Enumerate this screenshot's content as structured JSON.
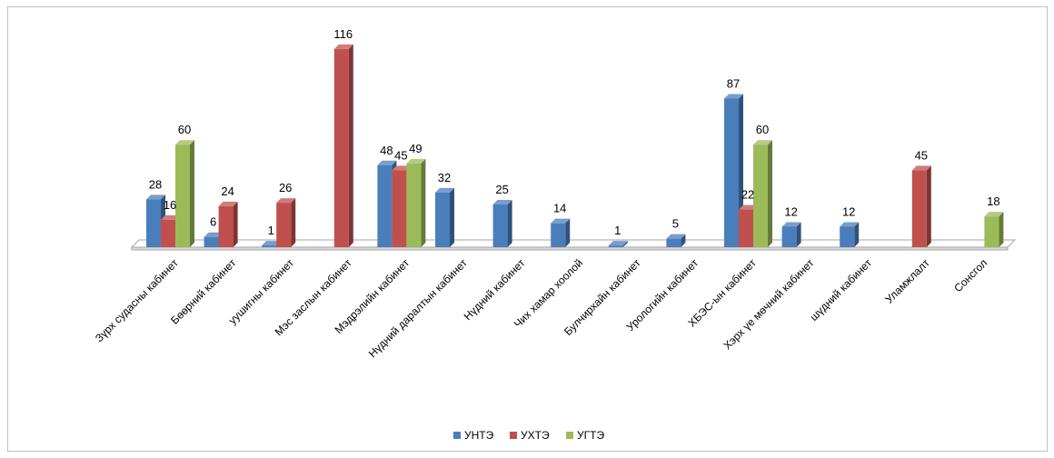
{
  "chart_data": {
    "type": "bar",
    "title": "",
    "xlabel": "",
    "ylabel": "",
    "ylim": [
      0,
      120
    ],
    "grid": false,
    "legend_position": "bottom",
    "categories": [
      "Зүрх судасны кабинет",
      "Бөөрний кабинет",
      "уушигны кабинет",
      "Мэс заслын кабинет",
      "Мэдрэлийн  кабинет",
      "Нүдний даралтын  кабинет",
      "Нүдний  кабинет",
      "Чих хамар хоолой",
      "Булчирхайн кабинет",
      "Урологийн кабинет",
      "ХБЭС-ын кабинет",
      "Хэрх үе мөчний кабинет",
      "шүдний кабинет",
      "Уламжлалт",
      "Сонсгол"
    ],
    "series": [
      {
        "name": "УНТЭ",
        "color": "#4a7ebb",
        "values": [
          28,
          6,
          1,
          null,
          48,
          32,
          25,
          14,
          1,
          5,
          87,
          12,
          12,
          null,
          null
        ]
      },
      {
        "name": "УХТЭ",
        "color": "#c0504d",
        "values": [
          16,
          24,
          26,
          116,
          45,
          null,
          null,
          null,
          null,
          null,
          22,
          null,
          null,
          45,
          null
        ]
      },
      {
        "name": "УГТЭ",
        "color": "#9bbb59",
        "values": [
          60,
          null,
          null,
          null,
          49,
          null,
          null,
          null,
          null,
          null,
          60,
          null,
          null,
          null,
          18
        ]
      }
    ]
  }
}
